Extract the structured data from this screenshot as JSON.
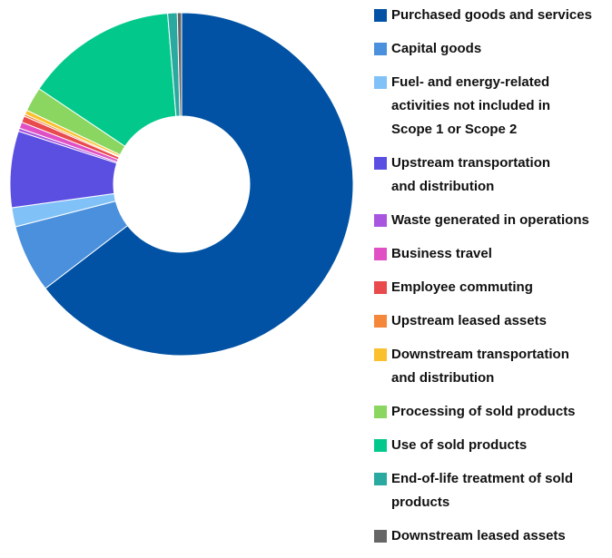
{
  "chart_data": {
    "type": "pie",
    "variant": "donut",
    "title": "",
    "legend_position": "right",
    "unit": "percent",
    "slices": [
      {
        "label": "Purchased goods and services",
        "value": 64.6,
        "color": "#0152a4"
      },
      {
        "label": "Capital goods",
        "value": 6.4,
        "color": "#4a90dc"
      },
      {
        "label": "Fuel- and energy-related activities not included in Scope 1 or Scope 2",
        "value": 1.8,
        "color": "#80c2f8"
      },
      {
        "label": "Upstream transportation and distribution",
        "value": 7.2,
        "color": "#5b4fe2"
      },
      {
        "label": "Waste generated in operations",
        "value": 0.3,
        "color": "#a856e0"
      },
      {
        "label": "Business travel",
        "value": 0.6,
        "color": "#e050c4"
      },
      {
        "label": "Employee commuting",
        "value": 0.6,
        "color": "#e84a4e"
      },
      {
        "label": "Upstream leased assets",
        "value": 0.2,
        "color": "#f5873a"
      },
      {
        "label": "Downstream transportation and distribution",
        "value": 0.4,
        "color": "#fbc02d"
      },
      {
        "label": "Processing of sold products",
        "value": 2.3,
        "color": "#8ad660"
      },
      {
        "label": "Use of sold products",
        "value": 14.3,
        "color": "#02c98b"
      },
      {
        "label": "End-of-life treatment of sold products",
        "value": 0.9,
        "color": "#2aa9a1"
      },
      {
        "label": "Downstream leased assets",
        "value": 0.4,
        "color": "#666666"
      }
    ]
  }
}
